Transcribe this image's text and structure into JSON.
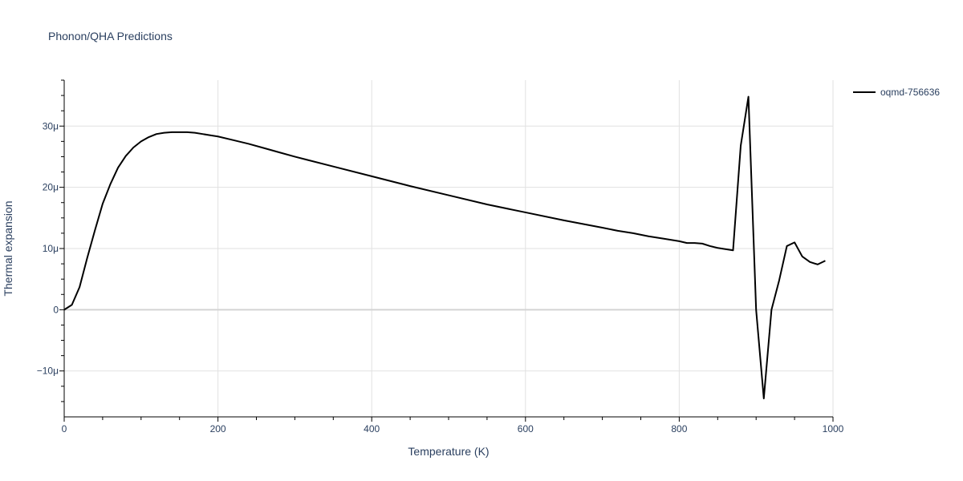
{
  "chart_data": {
    "type": "line",
    "title": "Phonon/QHA Predictions",
    "xlabel": "Temperature (K)",
    "ylabel": "Thermal expansion",
    "xlim": [
      0,
      1000
    ],
    "ylim": [
      -1.75e-05,
      3.75e-05
    ],
    "x_ticks": [
      0,
      200,
      400,
      600,
      800,
      1000
    ],
    "x_tick_labels": [
      "0",
      "200",
      "400",
      "600",
      "800",
      "1000"
    ],
    "y_ticks": [
      -1e-05,
      0,
      1e-05,
      2e-05,
      3e-05
    ],
    "y_tick_labels": [
      "−10μ",
      "0",
      "10μ",
      "20μ",
      "30μ"
    ],
    "grid": true,
    "legend_position": "top-right",
    "series": [
      {
        "name": "oqmd-756636",
        "color": "#000000",
        "x": [
          0,
          10,
          20,
          30,
          40,
          50,
          60,
          70,
          80,
          90,
          100,
          110,
          120,
          130,
          140,
          150,
          160,
          170,
          180,
          190,
          200,
          220,
          240,
          260,
          280,
          300,
          350,
          400,
          450,
          500,
          550,
          600,
          650,
          700,
          720,
          740,
          760,
          780,
          800,
          810,
          820,
          830,
          840,
          850,
          860,
          870,
          880,
          890,
          900,
          910,
          920,
          930,
          940,
          950,
          960,
          970,
          980,
          990
        ],
        "y": [
          0,
          8e-07,
          3.7e-06,
          8.5e-06,
          1.3e-05,
          1.73e-05,
          2.05e-05,
          2.32e-05,
          2.51e-05,
          2.65e-05,
          2.75e-05,
          2.82e-05,
          2.87e-05,
          2.89e-05,
          2.9e-05,
          2.9e-05,
          2.9e-05,
          2.89e-05,
          2.87e-05,
          2.85e-05,
          2.83e-05,
          2.77e-05,
          2.71e-05,
          2.64e-05,
          2.57e-05,
          2.5e-05,
          2.34e-05,
          2.18e-05,
          2.02e-05,
          1.87e-05,
          1.72e-05,
          1.59e-05,
          1.46e-05,
          1.34e-05,
          1.29e-05,
          1.25e-05,
          1.2e-05,
          1.16e-05,
          1.12e-05,
          1.09e-05,
          1.09e-05,
          1.08e-05,
          1.04e-05,
          1.01e-05,
          9.9e-06,
          9.7e-06,
          2.68e-05,
          3.48e-05,
          0.0,
          -1.45e-05,
          -0.0,
          4.8e-06,
          1.04e-05,
          1.1e-05,
          8.7e-06,
          7.8e-06,
          7.4e-06,
          8e-06
        ]
      }
    ]
  }
}
